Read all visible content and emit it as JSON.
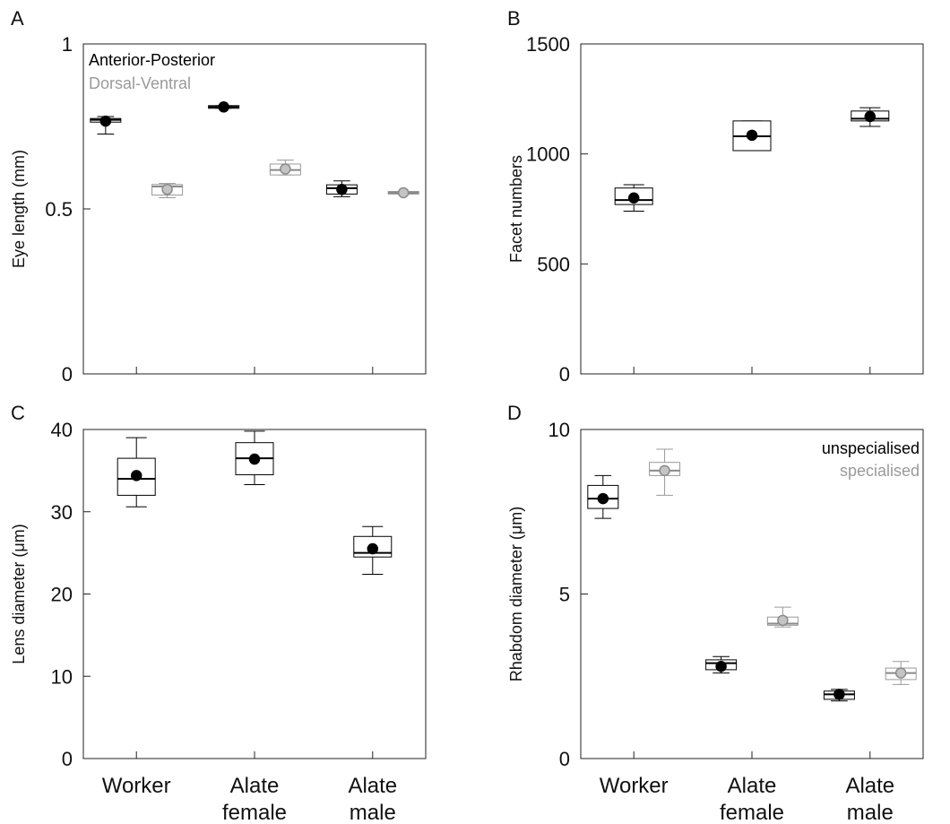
{
  "chart_data": [
    {
      "panel": "A",
      "type": "box",
      "ylabel": "Eye length (mm)",
      "ylim": [
        0,
        1
      ],
      "yticks": [
        0,
        0.5,
        1
      ],
      "ytick_labels": [
        "0",
        "0.5",
        "1"
      ],
      "categories": [
        "Worker",
        "Alate female",
        "Alate male"
      ],
      "show_category_labels": false,
      "legend": {
        "placement": "top-left",
        "entries": [
          "Anterior-Posterior",
          "Dorsal-Ventral"
        ]
      },
      "series": [
        {
          "name": "Anterior-Posterior",
          "color": "#000000",
          "boxes": [
            {
              "min": 0.727,
              "q1": 0.763,
              "median": 0.77,
              "q3": 0.774,
              "max": 0.78,
              "mean": 0.766
            },
            {
              "min": 0.805,
              "q1": 0.805,
              "median": 0.809,
              "q3": 0.813,
              "max": 0.813,
              "mean": 0.809
            },
            {
              "min": 0.537,
              "q1": 0.545,
              "median": 0.563,
              "q3": 0.573,
              "max": 0.585,
              "mean": 0.559
            }
          ]
        },
        {
          "name": "Dorsal-Ventral",
          "color": "#9a9a9a",
          "boxes": [
            {
              "min": 0.534,
              "q1": 0.542,
              "median": 0.568,
              "q3": 0.574,
              "max": 0.577,
              "mean": 0.559
            },
            {
              "min": 0.603,
              "q1": 0.603,
              "median": 0.618,
              "q3": 0.636,
              "max": 0.648,
              "mean": 0.621
            },
            {
              "min": 0.545,
              "q1": 0.545,
              "median": 0.549,
              "q3": 0.553,
              "max": 0.553,
              "mean": 0.549
            }
          ]
        }
      ]
    },
    {
      "panel": "B",
      "type": "box",
      "ylabel": "Facet numbers",
      "ylim": [
        0,
        1500
      ],
      "yticks": [
        0,
        500,
        1000,
        1500
      ],
      "ytick_labels": [
        "0",
        "500",
        "1000",
        "1500"
      ],
      "categories": [
        "Worker",
        "Alate female",
        "Alate male"
      ],
      "show_category_labels": false,
      "series": [
        {
          "name": "",
          "color": "#000000",
          "boxes": [
            {
              "min": 740,
              "q1": 770,
              "median": 790,
              "q3": 845,
              "max": 860,
              "mean": 800
            },
            {
              "min": 1015,
              "q1": 1015,
              "median": 1080,
              "q3": 1150,
              "max": 1150,
              "mean": 1085
            },
            {
              "min": 1125,
              "q1": 1150,
              "median": 1160,
              "q3": 1195,
              "max": 1210,
              "mean": 1170
            }
          ]
        }
      ]
    },
    {
      "panel": "C",
      "type": "box",
      "ylabel": "Lens diameter (μm)",
      "ylim": [
        0,
        40
      ],
      "yticks": [
        0,
        10,
        20,
        30,
        40
      ],
      "ytick_labels": [
        "0",
        "10",
        "20",
        "30",
        "40"
      ],
      "categories": [
        "Worker",
        "Alate female",
        "Alate male"
      ],
      "show_category_labels": true,
      "series": [
        {
          "name": "",
          "color": "#000000",
          "boxes": [
            {
              "min": 30.6,
              "q1": 32.0,
              "median": 34.0,
              "q3": 36.5,
              "max": 39.0,
              "mean": 34.4
            },
            {
              "min": 33.3,
              "q1": 34.5,
              "median": 36.5,
              "q3": 38.4,
              "max": 39.8,
              "mean": 36.4
            },
            {
              "min": 22.4,
              "q1": 24.5,
              "median": 25.0,
              "q3": 27.0,
              "max": 28.2,
              "mean": 25.5
            }
          ]
        }
      ]
    },
    {
      "panel": "D",
      "type": "box",
      "ylabel": "Rhabdom diameter (μm)",
      "ylim": [
        0,
        10
      ],
      "yticks": [
        0,
        5,
        10
      ],
      "ytick_labels": [
        "0",
        "5",
        "10"
      ],
      "categories": [
        "Worker",
        "Alate female",
        "Alate male"
      ],
      "show_category_labels": true,
      "legend": {
        "placement": "top-right",
        "entries": [
          "unspecialised",
          "specialised"
        ]
      },
      "series": [
        {
          "name": "unspecialised",
          "color": "#000000",
          "boxes": [
            {
              "min": 7.3,
              "q1": 7.6,
              "median": 7.9,
              "q3": 8.3,
              "max": 8.6,
              "mean": 7.9
            },
            {
              "min": 2.6,
              "q1": 2.7,
              "median": 2.9,
              "q3": 3.0,
              "max": 3.1,
              "mean": 2.8
            },
            {
              "min": 1.75,
              "q1": 1.8,
              "median": 1.95,
              "q3": 2.05,
              "max": 2.1,
              "mean": 1.95
            }
          ]
        },
        {
          "name": "specialised",
          "color": "#9a9a9a",
          "boxes": [
            {
              "min": 8.0,
              "q1": 8.6,
              "median": 8.75,
              "q3": 9.0,
              "max": 9.4,
              "mean": 8.75
            },
            {
              "min": 4.0,
              "q1": 4.05,
              "median": 4.1,
              "q3": 4.3,
              "max": 4.6,
              "mean": 4.2
            },
            {
              "min": 2.25,
              "q1": 2.4,
              "median": 2.6,
              "q3": 2.75,
              "max": 2.95,
              "mean": 2.6
            }
          ]
        }
      ]
    }
  ]
}
